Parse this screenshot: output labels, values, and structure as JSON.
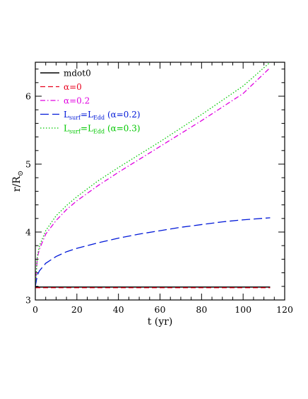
{
  "chart_data": {
    "type": "line",
    "xlabel": "t (yr)",
    "ylabel_main": "r/R",
    "ylabel_sub": "⊙",
    "xlim": [
      0,
      120
    ],
    "ylim": [
      3,
      6.5
    ],
    "xticks": [
      0,
      20,
      40,
      60,
      80,
      100,
      120
    ],
    "yticks": [
      3,
      4,
      5,
      6
    ],
    "legend_position": "top-left",
    "series": [
      {
        "key": "mdot0",
        "legend": {
          "pre": "mdot0"
        },
        "color": "#000000",
        "dash": "",
        "width": 1.6,
        "x": [
          0,
          113
        ],
        "y": [
          3.19,
          3.19
        ]
      },
      {
        "key": "alpha0",
        "legend": {
          "pre": "α=0"
        },
        "color": "#e8001c",
        "dash": "7,4",
        "width": 1.3,
        "x": [
          0,
          113
        ],
        "y": [
          3.18,
          3.18
        ]
      },
      {
        "key": "alpha02",
        "legend": {
          "pre": "α=0.2"
        },
        "color": "#e000e0",
        "dash": "7,3,1.5,3",
        "width": 1.3,
        "x": [
          0,
          1,
          2,
          5,
          10,
          15,
          20,
          30,
          40,
          50,
          60,
          70,
          80,
          90,
          100,
          113
        ],
        "y": [
          3.2,
          3.63,
          3.75,
          3.97,
          4.17,
          4.33,
          4.46,
          4.68,
          4.88,
          5.07,
          5.26,
          5.45,
          5.64,
          5.84,
          6.04,
          6.42
        ]
      },
      {
        "key": "lsurf02",
        "legend": {
          "pre": "L",
          "sub1": "surf",
          "mid": "=L",
          "sub2": "Edd",
          "post": "  (α=0.2)"
        },
        "color": "#0018d8",
        "dash": "12,5",
        "width": 1.3,
        "x": [
          0,
          1,
          2,
          5,
          10,
          15,
          20,
          30,
          40,
          50,
          60,
          70,
          80,
          90,
          100,
          113
        ],
        "y": [
          3.2,
          3.37,
          3.43,
          3.54,
          3.64,
          3.71,
          3.76,
          3.84,
          3.91,
          3.97,
          4.02,
          4.07,
          4.11,
          4.15,
          4.18,
          4.21
        ]
      },
      {
        "key": "lsurf03",
        "legend": {
          "pre": "L",
          "sub1": "surf",
          "mid": "=L",
          "sub2": "Edd",
          "post": "  (α=0.3)"
        },
        "color": "#00c800",
        "dash": "1.5,2.5",
        "width": 1.3,
        "x": [
          0,
          1,
          2,
          5,
          10,
          15,
          20,
          30,
          40,
          50,
          60,
          70,
          80,
          90,
          100,
          113
        ],
        "y": [
          3.2,
          3.65,
          3.8,
          4.02,
          4.24,
          4.39,
          4.52,
          4.75,
          4.95,
          5.14,
          5.33,
          5.53,
          5.73,
          5.94,
          6.15,
          6.5
        ]
      }
    ]
  }
}
